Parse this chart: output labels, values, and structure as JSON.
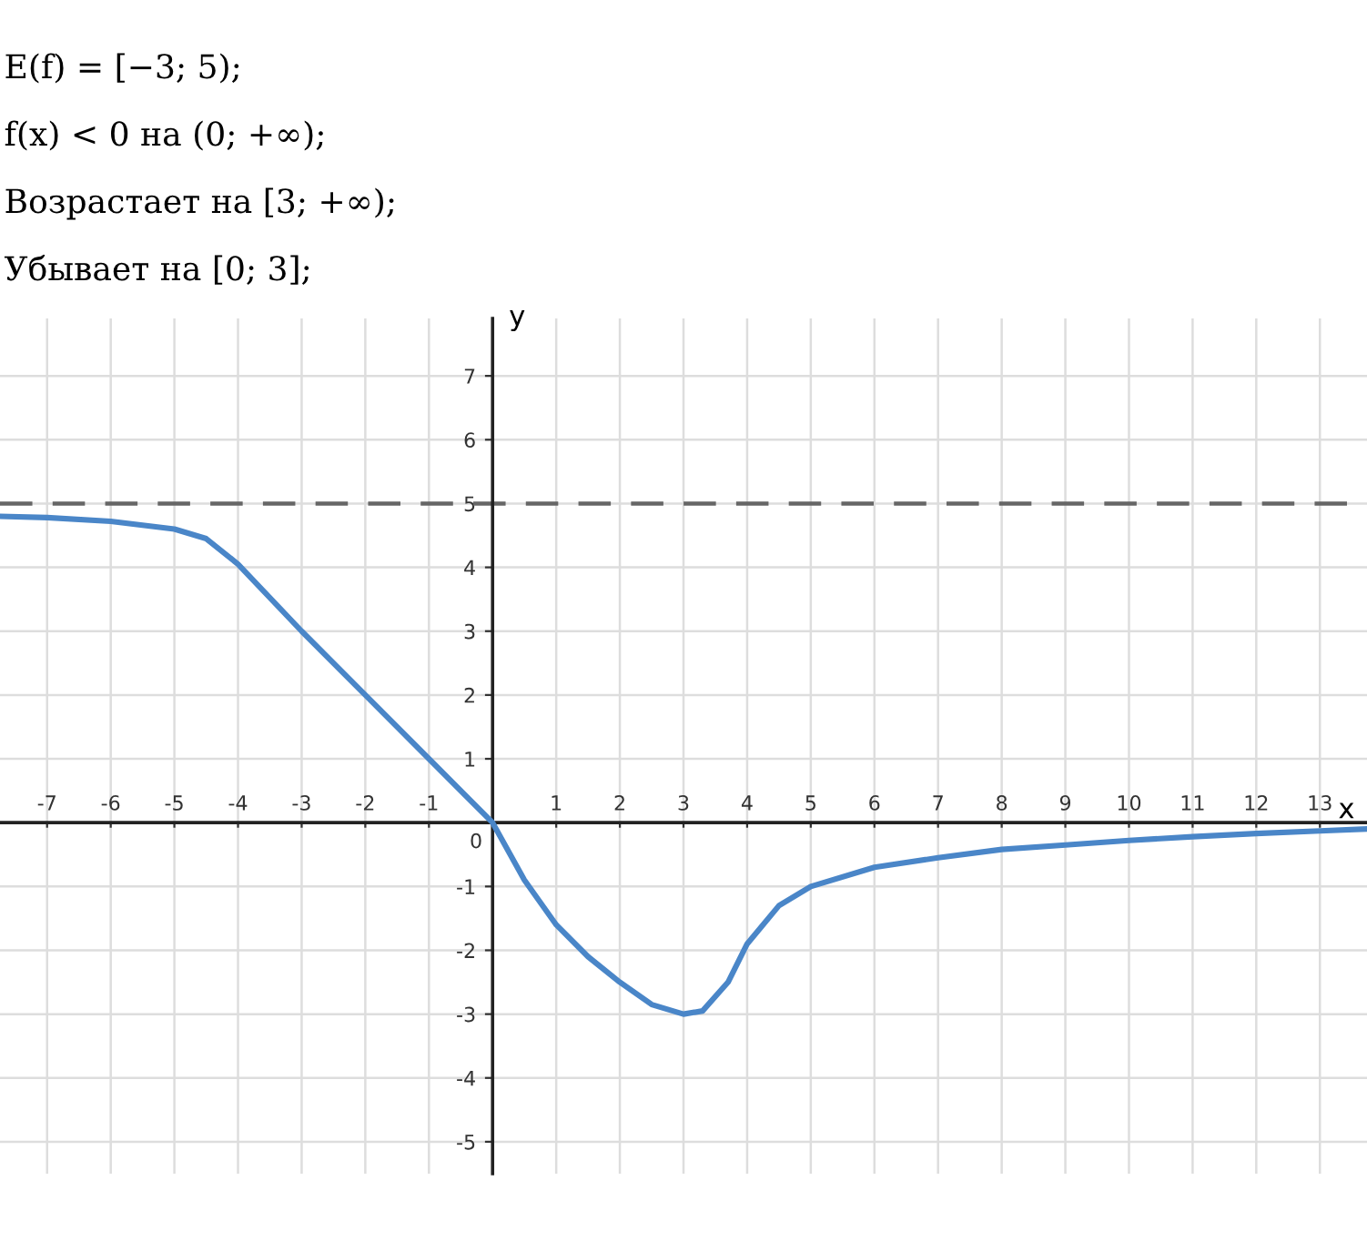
{
  "chart_data": {
    "type": "line",
    "x": [
      -7.74,
      -7,
      -6,
      -5,
      -4.5,
      -4,
      -3,
      -2,
      -1,
      0,
      0.5,
      1,
      1.5,
      2,
      2.5,
      3,
      3.3,
      3.7,
      4,
      4.5,
      5,
      6,
      7,
      8,
      9,
      10,
      11,
      12,
      13,
      13.7
    ],
    "series": [
      {
        "color": "#4a86c8",
        "values": [
          4.8,
          4.78,
          4.72,
          4.6,
          4.45,
          4.05,
          3,
          2,
          1,
          0,
          -0.9,
          -1.6,
          -2.1,
          -2.5,
          -2.85,
          -3,
          -2.95,
          -2.5,
          -1.9,
          -1.3,
          -1.0,
          -0.7,
          -0.55,
          -0.42,
          -0.35,
          -0.28,
          -0.22,
          -0.17,
          -0.13,
          -0.1
        ]
      }
    ],
    "xlabel": "x",
    "ylabel": "y",
    "xlim": [
      -7.74,
      13.74
    ],
    "ylim": [
      -5.5,
      7.9
    ],
    "xticks": [
      -7,
      -6,
      -5,
      -4,
      -3,
      -2,
      -1,
      {
        "value": 0,
        "label": null
      },
      1,
      2,
      3,
      4,
      5,
      6,
      7,
      8,
      9,
      10,
      11,
      12,
      13
    ],
    "yticks": [
      -5,
      -4,
      -3,
      -2,
      -1,
      1,
      2,
      3,
      4,
      5,
      6,
      7
    ],
    "grid": true,
    "marker": "none",
    "line_style": "solid",
    "ref_lines": [
      {
        "axis": "y",
        "value": 5,
        "color": "#666666",
        "line_style": "dashed"
      }
    ],
    "annotations": [
      {
        "text": "0",
        "x": 0,
        "y": 0
      },
      "E(f) = [−3; 5);",
      "f(x) < 0 на (0; +∞);",
      "Возрастает на [3; +∞);",
      "Убывает на [0; 3];"
    ]
  }
}
